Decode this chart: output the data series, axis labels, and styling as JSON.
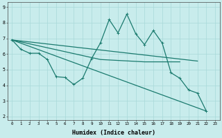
{
  "xlabel": "Humidex (Indice chaleur)",
  "bg_color": "#c8ecec",
  "line_color": "#1a7a6e",
  "grid_color": "#a8d8d8",
  "xlim": [
    -0.5,
    23.5
  ],
  "ylim": [
    1.8,
    9.3
  ],
  "xticks": [
    0,
    1,
    2,
    3,
    4,
    5,
    6,
    7,
    8,
    9,
    10,
    11,
    12,
    13,
    14,
    15,
    16,
    17,
    18,
    19,
    20,
    21,
    22,
    23
  ],
  "yticks": [
    2,
    3,
    4,
    5,
    6,
    7,
    8,
    9
  ],
  "line1_x": [
    0,
    1,
    2,
    3,
    4,
    5,
    6,
    7,
    8,
    9,
    10,
    11,
    12,
    13,
    14,
    15,
    16,
    17,
    18,
    19,
    20,
    21,
    22
  ],
  "line1_y": [
    6.9,
    6.3,
    6.05,
    6.05,
    5.65,
    4.55,
    4.5,
    4.05,
    4.45,
    5.7,
    6.7,
    8.2,
    7.35,
    8.55,
    7.3,
    6.6,
    7.5,
    6.7,
    4.8,
    4.45,
    3.7,
    3.5,
    2.35
  ],
  "line2_x": [
    0,
    21
  ],
  "line2_y": [
    6.9,
    5.55
  ],
  "line3_x": [
    0,
    22
  ],
  "line3_y": [
    6.9,
    2.35
  ],
  "line4_x": [
    0,
    10,
    15,
    19
  ],
  "line4_y": [
    6.9,
    5.65,
    5.5,
    5.5
  ]
}
